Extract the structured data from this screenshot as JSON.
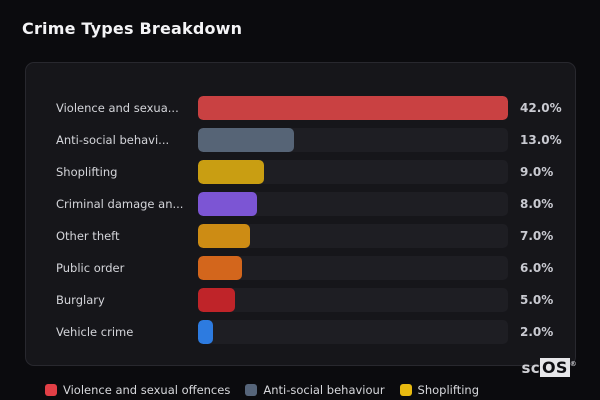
{
  "page": {
    "title": "Crime Types Breakdown",
    "background_color": "#0b0b0e",
    "card_background_color": "#16161a",
    "track_color": "#1e1e23"
  },
  "chart_data": {
    "type": "bar",
    "orientation": "horizontal",
    "title": "Crime Types Breakdown",
    "categories": [
      "Violence and sexua...",
      "Anti-social behavi...",
      "Shoplifting",
      "Criminal damage an...",
      "Other theft",
      "Public order",
      "Burglary",
      "Vehicle crime"
    ],
    "values": [
      42.0,
      13.0,
      9.0,
      8.0,
      7.0,
      6.0,
      5.0,
      2.0
    ],
    "value_labels": [
      "42.0%",
      "13.0%",
      "9.0%",
      "8.0%",
      "7.0%",
      "6.0%",
      "5.0%",
      "2.0%"
    ],
    "bar_colors": [
      "#c94142",
      "#566476",
      "#c99e12",
      "#7c55d4",
      "#cd8c14",
      "#d3661c",
      "#bf2429",
      "#2d7be0"
    ],
    "max_value": 42.0,
    "xlim": [
      0,
      42
    ],
    "grid": false,
    "legend_position": "bottom"
  },
  "legend": {
    "items": [
      {
        "label": "Violence and sexual offences",
        "color": "#e23f46"
      },
      {
        "label": "Anti-social behaviour",
        "color": "#56657a"
      },
      {
        "label": "Shoplifting",
        "color": "#e8ba10"
      }
    ]
  },
  "branding": {
    "logo_prefix": "sc",
    "logo_suffix": "OS",
    "registered_mark": "®"
  }
}
